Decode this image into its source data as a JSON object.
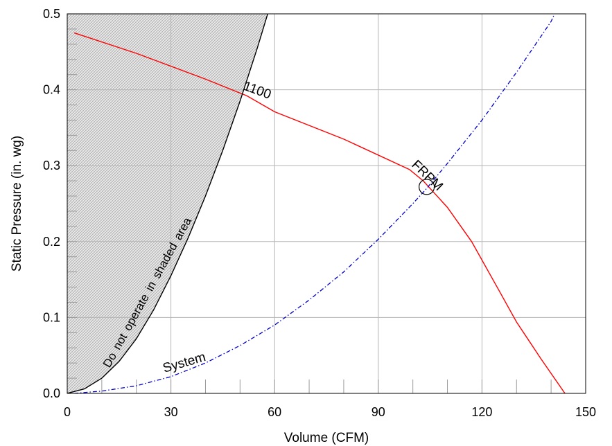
{
  "chart_data": {
    "type": "line",
    "xlabel": "Volume (CFM)",
    "ylabel": "Static Pressure (in. wg)",
    "xlim": [
      0,
      150
    ],
    "ylim": [
      0,
      0.5
    ],
    "x_ticks": [
      "0",
      "30",
      "60",
      "90",
      "120",
      "150"
    ],
    "y_ticks": [
      "0.0",
      "0.1",
      "0.2",
      "0.3",
      "0.4",
      "0.5"
    ],
    "grid": true,
    "series": [
      {
        "name": "1100",
        "style": "solid",
        "color": "#ff0000",
        "x": [
          2,
          20,
          40,
          52,
          60,
          80,
          99,
          103,
          110,
          117,
          125,
          130,
          137,
          144
        ],
        "y": [
          0.475,
          0.448,
          0.414,
          0.392,
          0.371,
          0.335,
          0.295,
          0.28,
          0.245,
          0.2,
          0.135,
          0.094,
          0.046,
          0.0
        ]
      },
      {
        "name": "System",
        "style": "dash-dot",
        "color": "#0000cc",
        "x": [
          2,
          10,
          20,
          30,
          40,
          50,
          60,
          70,
          80,
          90,
          100,
          104,
          110,
          120,
          130,
          140,
          141
        ],
        "y": [
          0.0,
          0.003,
          0.01,
          0.022,
          0.04,
          0.063,
          0.09,
          0.123,
          0.16,
          0.203,
          0.25,
          0.27,
          0.303,
          0.36,
          0.423,
          0.49,
          0.5
        ]
      },
      {
        "name": "Do not operate in shaded area",
        "style": "solid",
        "color": "#000000",
        "x": [
          0,
          5,
          10,
          15,
          20,
          25,
          30,
          35,
          40,
          45,
          50,
          55,
          58
        ],
        "y": [
          0.0,
          0.006,
          0.02,
          0.042,
          0.072,
          0.11,
          0.155,
          0.205,
          0.26,
          0.32,
          0.385,
          0.455,
          0.5
        ]
      }
    ],
    "annotations": {
      "rpm_label": "1100",
      "system_label": "System",
      "shade_label": "Do not operate in shaded area",
      "fr_label": "FRPM"
    },
    "operating_point": {
      "x": 104,
      "y": 0.272
    }
  }
}
